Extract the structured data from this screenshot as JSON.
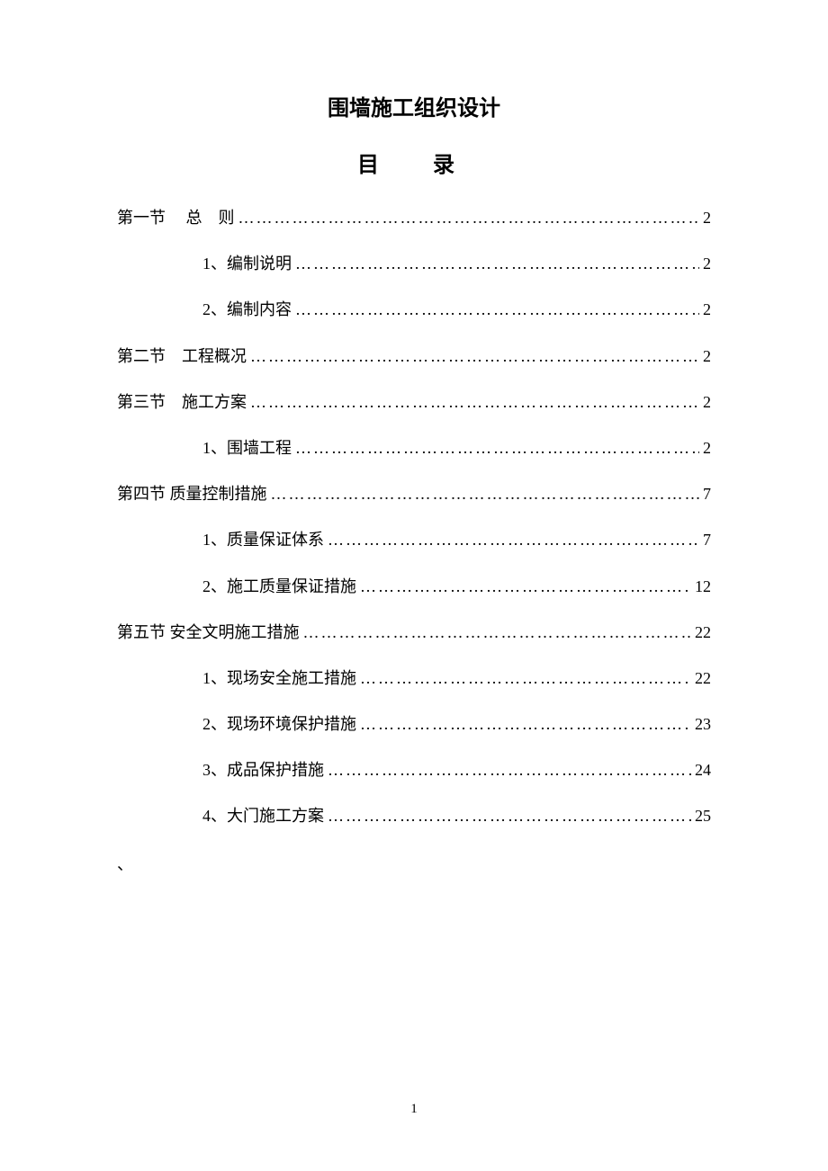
{
  "title": "围墙施工组织设计",
  "toc_heading": "目　录",
  "toc": [
    {
      "indent": 1,
      "label": "第一节　 总　则 ",
      "page": " 2"
    },
    {
      "indent": 2,
      "label": "1、编制说明 ",
      "page": " 2"
    },
    {
      "indent": 2,
      "label": "2、编制内容 ",
      "page": " 2"
    },
    {
      "indent": 1,
      "label": "第二节　工程概况 ",
      "page": " 2"
    },
    {
      "indent": 1,
      "label": "第三节　施工方案 ",
      "page": " 2"
    },
    {
      "indent": 2,
      "label": "1、围墙工程 ",
      "page": " 2"
    },
    {
      "indent": 1,
      "label": "第四节 质量控制措施 ",
      "page": " 7"
    },
    {
      "indent": 2,
      "label": "1、质量保证体系 ",
      "page": " 7"
    },
    {
      "indent": 2,
      "label": "2、施工质量保证措施 ",
      "page": " 12"
    },
    {
      "indent": 1,
      "label": "第五节 安全文明施工措施 ",
      "page": " 22"
    },
    {
      "indent": 2,
      "label": "1、现场安全施工措施 ",
      "page": " 22"
    },
    {
      "indent": 2,
      "label": "2、现场环境保护措施 ",
      "page": " 23"
    },
    {
      "indent": 2,
      "label": "3、成品保护措施 ",
      "page": " 24"
    },
    {
      "indent": 2,
      "label": "4、大门施工方案",
      "page": "25"
    }
  ],
  "trailing": "、",
  "page_number": "1",
  "colors": {
    "text": "#000000",
    "background": "#ffffff"
  },
  "typography": {
    "title_fontsize": 24,
    "body_fontsize": 18,
    "footer_fontsize": 15,
    "font_family": "SimSun"
  }
}
